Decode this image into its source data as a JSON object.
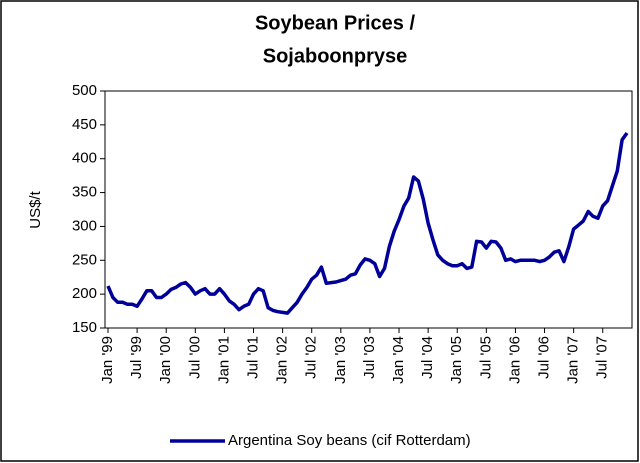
{
  "chart_data": {
    "type": "line",
    "title": [
      "Soybean Prices /",
      "Sojaboonpryse"
    ],
    "y_label": "US$/t",
    "categories": [
      "Jan '99",
      null,
      null,
      null,
      null,
      null,
      "Jul '99",
      null,
      null,
      null,
      null,
      null,
      "Jan '00",
      null,
      null,
      null,
      null,
      null,
      "Jul '00",
      null,
      null,
      null,
      null,
      null,
      "Jan '01",
      null,
      null,
      null,
      null,
      null,
      "Jul '01",
      null,
      null,
      null,
      null,
      null,
      "Jan '02",
      null,
      null,
      null,
      null,
      null,
      "Jul '02",
      null,
      null,
      null,
      null,
      null,
      "Jan '03",
      null,
      null,
      null,
      null,
      null,
      "Jul '03",
      null,
      null,
      null,
      null,
      null,
      "Jan '04",
      null,
      null,
      null,
      null,
      null,
      "Jul '04",
      null,
      null,
      null,
      null,
      null,
      "Jan '05",
      null,
      null,
      null,
      null,
      null,
      "Jul '05",
      null,
      null,
      null,
      null,
      null,
      "Jan '06",
      null,
      null,
      null,
      null,
      null,
      "Jul '06",
      null,
      null,
      null,
      null,
      null,
      "Jan '07",
      null,
      null,
      null,
      null,
      null,
      "Jul '07",
      null,
      null,
      null,
      null,
      null
    ],
    "series": [
      {
        "name": "Argentina Soy beans (cif Rotterdam)",
        "color": "#000099",
        "values": [
          212,
          195,
          188,
          188,
          185,
          185,
          182,
          193,
          205,
          205,
          195,
          195,
          200,
          207,
          210,
          215,
          217,
          210,
          200,
          205,
          208,
          200,
          200,
          208,
          200,
          190,
          185,
          177,
          182,
          185,
          200,
          208,
          205,
          180,
          176,
          174,
          173,
          172,
          180,
          188,
          200,
          210,
          222,
          228,
          240,
          216,
          217,
          218,
          220,
          222,
          228,
          230,
          243,
          252,
          250,
          245,
          226,
          238,
          270,
          293,
          310,
          330,
          342,
          373,
          367,
          340,
          305,
          280,
          258,
          250,
          245,
          242,
          242,
          245,
          238,
          240,
          278,
          277,
          268,
          278,
          277,
          268,
          250,
          252,
          248,
          250,
          250,
          250,
          250,
          248,
          250,
          255,
          262,
          264,
          248,
          270,
          296,
          302,
          308,
          322,
          315,
          312,
          330,
          338,
          360,
          382,
          428,
          438
        ]
      }
    ],
    "ylim": [
      150,
      500
    ],
    "yticks": [
      150,
      200,
      250,
      300,
      350,
      400,
      450,
      500
    ],
    "legend": "bottom"
  }
}
